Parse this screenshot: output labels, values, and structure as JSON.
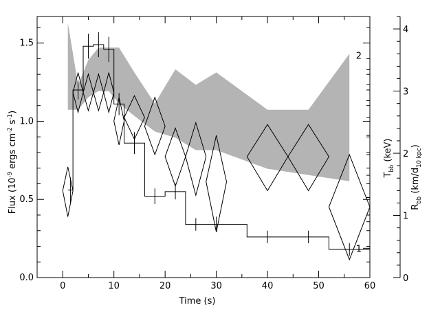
{
  "chart_data": {
    "type": "line",
    "title": "",
    "xlabel": "Time (s)",
    "xlim": [
      -5,
      60
    ],
    "x_ticks": [
      0,
      10,
      20,
      30,
      40,
      50,
      60
    ],
    "left_axis": {
      "label": {
        "pre": "Flux (10",
        "sup1": "-9",
        "mid": " ergs cm",
        "sup2": "-2",
        "mid2": " s",
        "sup3": "-1",
        "post": ")"
      },
      "ylim": [
        0,
        1.67
      ],
      "ticks": [
        "0.0",
        "0.5",
        "1.0",
        "1.5"
      ]
    },
    "tbb_axis": {
      "label": {
        "pre": "T",
        "sub": "bb",
        "post": " (keV)"
      },
      "scale": "log",
      "ylim": [
        0.9,
        2.3
      ],
      "ticks": [
        "1",
        "2"
      ]
    },
    "rbb_axis": {
      "label": {
        "pre": "R",
        "sub": "bb",
        "mid": " (km/d",
        "sub2": "10 kpc",
        "post": ")"
      },
      "ylim": [
        0,
        4.2
      ],
      "ticks": [
        "0",
        "1",
        "2",
        "3",
        "4"
      ]
    },
    "series": [
      {
        "style": "histogram",
        "color": "#000000",
        "bins": [
          {
            "x0": 1,
            "x1": 2,
            "y": 0.56,
            "err": 0.08
          },
          {
            "x0": 2,
            "x1": 4,
            "y": 1.2,
            "err": 0.06
          },
          {
            "x0": 4,
            "x1": 6,
            "y": 1.48,
            "err": 0.08
          },
          {
            "x0": 6,
            "x1": 8,
            "y": 1.49,
            "err": 0.08
          },
          {
            "x0": 8,
            "x1": 10,
            "y": 1.46,
            "err": 0.08
          },
          {
            "x0": 10,
            "x1": 12,
            "y": 1.11,
            "err": 0.07
          },
          {
            "x0": 12,
            "x1": 16,
            "y": 0.86,
            "err": 0.07
          },
          {
            "x0": 16,
            "x1": 20,
            "y": 0.52,
            "err": 0.05
          },
          {
            "x0": 20,
            "x1": 24,
            "y": 0.55,
            "err": 0.05
          },
          {
            "x0": 24,
            "x1": 28,
            "y": 0.34,
            "err": 0.04
          },
          {
            "x0": 28,
            "x1": 32,
            "y": 0.34,
            "err": 0.05
          },
          {
            "x0": 32,
            "x1": 36,
            "y": 0.34,
            "err": 0.0
          },
          {
            "x0": 36,
            "x1": 44,
            "y": 0.26,
            "err": 0.04
          },
          {
            "x0": 44,
            "x1": 52,
            "y": 0.26,
            "err": 0.04
          },
          {
            "x0": 52,
            "x1": 60,
            "y": 0.18,
            "err": 0.04
          }
        ]
      },
      {
        "style": "diamonds",
        "axis": "Tbb",
        "color": "#000000",
        "points": [
          {
            "x": 1.0,
            "xerr": 1.0,
            "y": 1.23,
            "ylo": 1.12,
            "yhi": 1.34
          },
          {
            "x": 3.0,
            "xerr": 1.0,
            "y": 1.75,
            "ylo": 1.63,
            "yhi": 1.88
          },
          {
            "x": 5.0,
            "xerr": 1.0,
            "y": 1.75,
            "ylo": 1.64,
            "yhi": 1.87
          },
          {
            "x": 7.0,
            "xerr": 1.0,
            "y": 1.75,
            "ylo": 1.64,
            "yhi": 1.87
          },
          {
            "x": 9.0,
            "xerr": 1.0,
            "y": 1.75,
            "ylo": 1.63,
            "yhi": 1.88
          },
          {
            "x": 11.0,
            "xerr": 1.0,
            "y": 1.58,
            "ylo": 1.45,
            "yhi": 1.72
          },
          {
            "x": 14.0,
            "xerr": 2.0,
            "y": 1.6,
            "ylo": 1.48,
            "yhi": 1.73
          },
          {
            "x": 18.0,
            "xerr": 2.0,
            "y": 1.55,
            "ylo": 1.4,
            "yhi": 1.72
          },
          {
            "x": 22.0,
            "xerr": 2.0,
            "y": 1.39,
            "ylo": 1.25,
            "yhi": 1.54
          },
          {
            "x": 26.0,
            "xerr": 2.0,
            "y": 1.39,
            "ylo": 1.21,
            "yhi": 1.57
          },
          {
            "x": 30.0,
            "xerr": 2.0,
            "y": 1.27,
            "ylo": 1.06,
            "yhi": 1.5
          },
          {
            "x": 40.0,
            "xerr": 4.0,
            "y": 1.39,
            "ylo": 1.23,
            "yhi": 1.56
          },
          {
            "x": 48.0,
            "xerr": 4.0,
            "y": 1.39,
            "ylo": 1.23,
            "yhi": 1.56
          },
          {
            "x": 56.0,
            "xerr": 4.0,
            "y": 1.16,
            "ylo": 0.96,
            "yhi": 1.4
          }
        ]
      },
      {
        "style": "band",
        "axis": "Rbb",
        "color": "#b4b4b4",
        "points": [
          {
            "x": 1,
            "lo": 2.7,
            "hi": 4.1
          },
          {
            "x": 3,
            "lo": 2.7,
            "hi": 3.1
          },
          {
            "x": 5,
            "lo": 2.9,
            "hi": 3.5
          },
          {
            "x": 7,
            "lo": 3.0,
            "hi": 3.7
          },
          {
            "x": 9,
            "lo": 3.0,
            "hi": 3.7
          },
          {
            "x": 11,
            "lo": 2.8,
            "hi": 3.7
          },
          {
            "x": 14,
            "lo": 2.6,
            "hi": 3.3
          },
          {
            "x": 18,
            "lo": 2.35,
            "hi": 2.8
          },
          {
            "x": 22,
            "lo": 2.25,
            "hi": 3.35
          },
          {
            "x": 26,
            "lo": 2.05,
            "hi": 3.1
          },
          {
            "x": 30,
            "lo": 2.05,
            "hi": 3.3
          },
          {
            "x": 40,
            "lo": 1.75,
            "hi": 2.7
          },
          {
            "x": 48,
            "lo": 1.65,
            "hi": 2.7
          },
          {
            "x": 56,
            "lo": 1.55,
            "hi": 3.6
          }
        ]
      }
    ]
  }
}
